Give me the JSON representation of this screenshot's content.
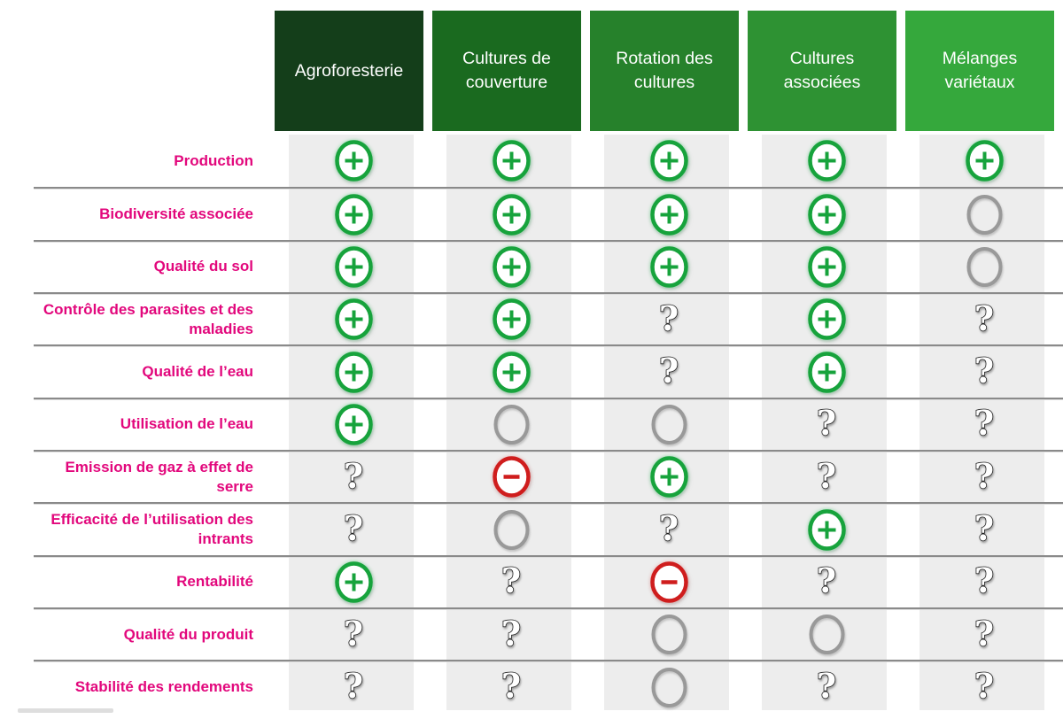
{
  "table": {
    "columns": [
      {
        "label": "Agroforesterie",
        "color": "#143e1a"
      },
      {
        "label": "Cultures de couverture",
        "color": "#1a6a1f"
      },
      {
        "label": "Rotation des cultures",
        "color": "#26812b"
      },
      {
        "label": "Cultures associées",
        "color": "#2e9233"
      },
      {
        "label": "Mélanges variétaux",
        "color": "#35a83c"
      }
    ],
    "rows": [
      {
        "label": "Production",
        "cells": [
          "plus",
          "plus",
          "plus",
          "plus",
          "plus"
        ]
      },
      {
        "label": "Biodiversité associée",
        "cells": [
          "plus",
          "plus",
          "plus",
          "plus",
          "circle"
        ]
      },
      {
        "label": "Qualité du sol",
        "cells": [
          "plus",
          "plus",
          "plus",
          "plus",
          "circle"
        ]
      },
      {
        "label": "Contrôle des parasites et des maladies",
        "cells": [
          "plus",
          "plus",
          "question",
          "plus",
          "question"
        ]
      },
      {
        "label": "Qualité de l’eau",
        "cells": [
          "plus",
          "plus",
          "question",
          "plus",
          "question"
        ]
      },
      {
        "label": "Utilisation de l’eau",
        "cells": [
          "plus",
          "circle",
          "circle",
          "question",
          "question"
        ]
      },
      {
        "label": "Emission de gaz à effet de serre",
        "cells": [
          "question",
          "minus",
          "plus",
          "question",
          "question"
        ]
      },
      {
        "label": "Efficacité de l’utilisation des intrants",
        "cells": [
          "question",
          "circle",
          "question",
          "plus",
          "question"
        ]
      },
      {
        "label": "Rentabilité",
        "cells": [
          "plus",
          "question",
          "minus",
          "question",
          "question"
        ]
      },
      {
        "label": "Qualité du produit",
        "cells": [
          "question",
          "question",
          "circle",
          "circle",
          "question"
        ]
      },
      {
        "label": "Stabilité des rendements",
        "cells": [
          "question",
          "question",
          "circle",
          "question",
          "question"
        ]
      }
    ],
    "symbols": {
      "plus": {
        "meaning": "effet positif",
        "color": "#17a33c",
        "icon": "plus-circle-icon"
      },
      "minus": {
        "meaning": "effet négatif",
        "color": "#cf1d1d",
        "icon": "minus-circle-icon"
      },
      "circle": {
        "meaning": "effet neutre",
        "color": "#999999",
        "icon": "empty-circle-icon"
      },
      "question": {
        "meaning": "effet incertain",
        "color": "#1f1f1f",
        "glyph": "?",
        "icon": "question-mark-icon"
      }
    },
    "label_color": "#e2077c",
    "stripe_color": "#ededed",
    "line_color": "#8a8a8a"
  },
  "chart_data": {
    "type": "heatmap",
    "title": "",
    "x_categories": [
      "Agroforesterie",
      "Cultures de couverture",
      "Rotation des cultures",
      "Cultures associées",
      "Mélanges variétaux"
    ],
    "y_categories": [
      "Production",
      "Biodiversité associée",
      "Qualité du sol",
      "Contrôle des parasites et des maladies",
      "Qualité de l’eau",
      "Utilisation de l’eau",
      "Emission de gaz à effet de serre",
      "Efficacité de l’utilisation des intrants",
      "Rentabilité",
      "Qualité du produit",
      "Stabilité des rendements"
    ],
    "legend": {
      "plus": "positif",
      "minus": "négatif",
      "circle": "neutre",
      "question": "incertain"
    },
    "values": [
      [
        "plus",
        "plus",
        "plus",
        "plus",
        "plus"
      ],
      [
        "plus",
        "plus",
        "plus",
        "plus",
        "circle"
      ],
      [
        "plus",
        "plus",
        "plus",
        "plus",
        "circle"
      ],
      [
        "plus",
        "plus",
        "question",
        "plus",
        "question"
      ],
      [
        "plus",
        "plus",
        "question",
        "plus",
        "question"
      ],
      [
        "plus",
        "circle",
        "circle",
        "question",
        "question"
      ],
      [
        "question",
        "minus",
        "plus",
        "question",
        "question"
      ],
      [
        "question",
        "circle",
        "question",
        "plus",
        "question"
      ],
      [
        "plus",
        "question",
        "minus",
        "question",
        "question"
      ],
      [
        "question",
        "question",
        "circle",
        "circle",
        "question"
      ],
      [
        "question",
        "question",
        "circle",
        "question",
        "question"
      ]
    ]
  }
}
